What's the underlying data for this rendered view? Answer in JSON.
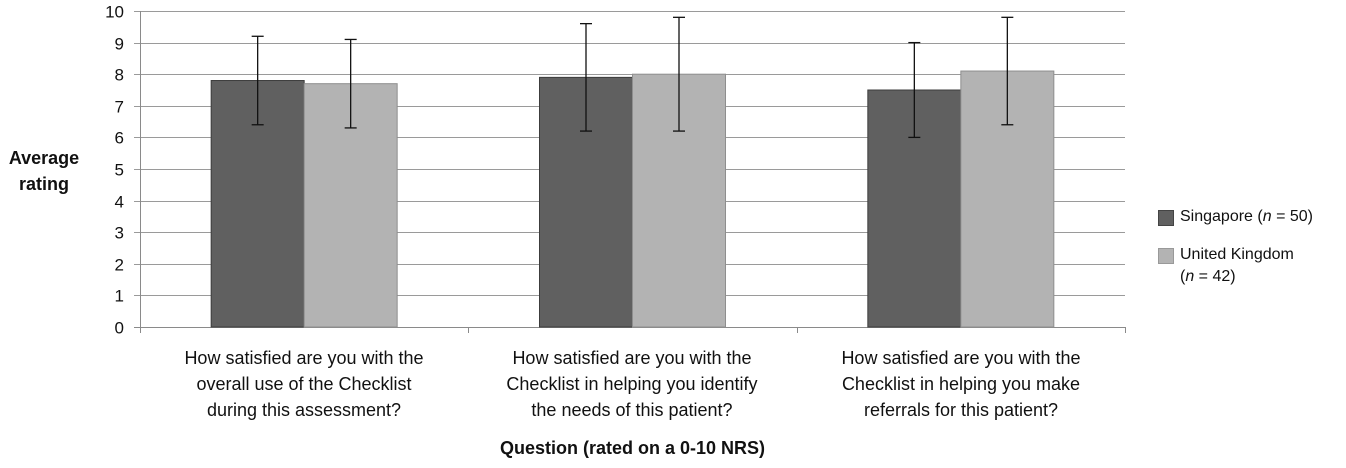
{
  "chart_data": {
    "type": "bar",
    "title": "",
    "ylabel": "Average\nrating",
    "xlabel": "Question (rated on a 0-10 NRS)",
    "ylim": [
      0,
      10
    ],
    "yticks": [
      0,
      1,
      2,
      3,
      4,
      5,
      6,
      7,
      8,
      9,
      10
    ],
    "grid": true,
    "legend_position": "right",
    "categories": [
      "How satisfied are you with the\noverall use of the Checklist\nduring this assessment?",
      "How satisfied are you with the\nChecklist in helping you identify\nthe needs of this patient?",
      "How satisfied are you with the\nChecklist in helping you make\nreferrals for this patient?"
    ],
    "series": [
      {
        "name": "Singapore (n = 50)",
        "label_main": "Singapore (",
        "label_n": "n",
        "label_rest": " = 50)",
        "color": "#606060",
        "values": [
          7.8,
          7.9,
          7.5
        ],
        "error": [
          1.4,
          1.7,
          1.5
        ]
      },
      {
        "name": "United Kingdom (n = 42)",
        "label_main": "United Kingdom",
        "label_line2_open": "(",
        "label_n": "n",
        "label_rest": " = 42)",
        "color": "#b3b3b3",
        "values": [
          7.7,
          8.0,
          8.1
        ],
        "error": [
          1.4,
          1.8,
          1.7
        ]
      }
    ]
  }
}
